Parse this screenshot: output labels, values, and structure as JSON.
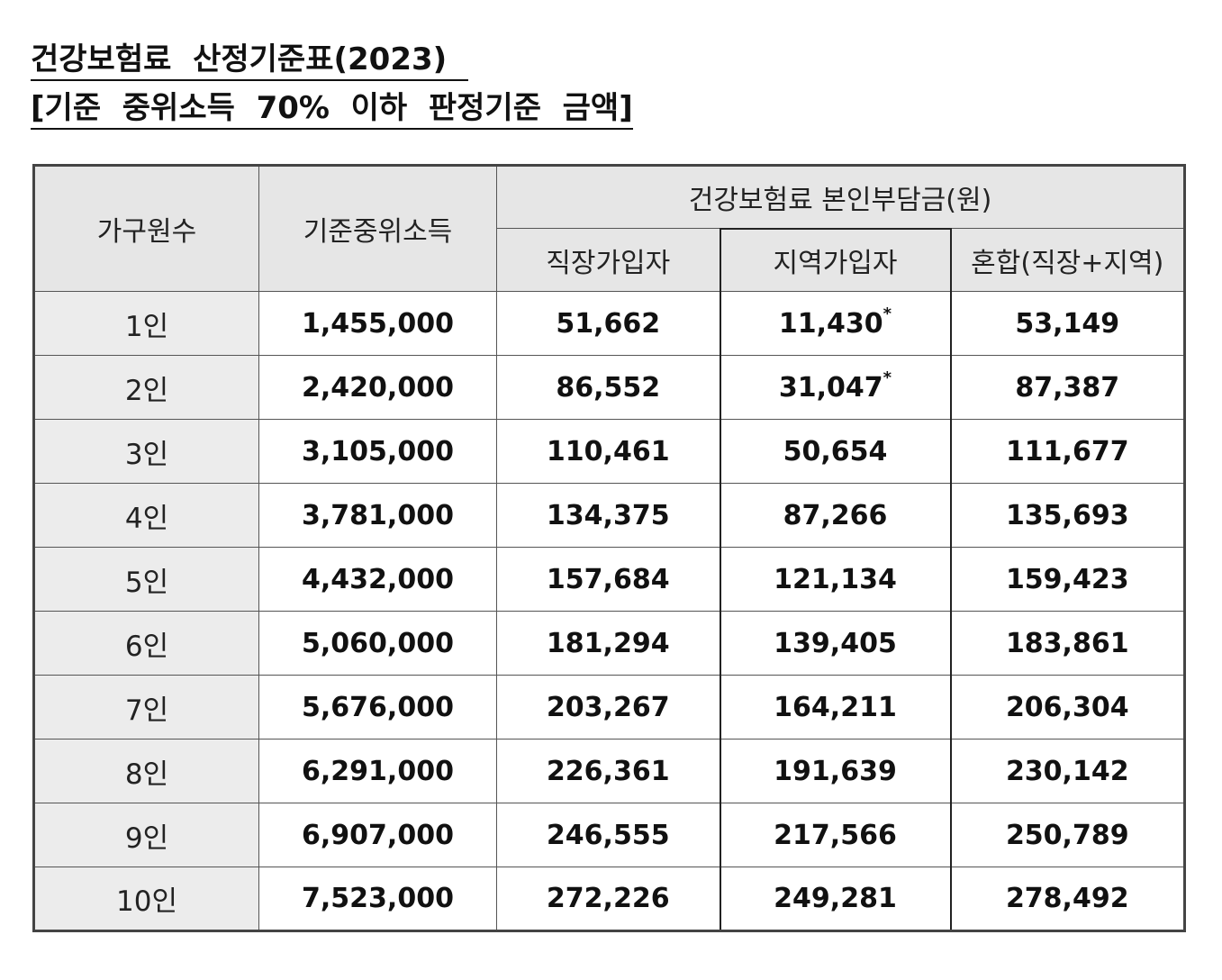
{
  "titles": {
    "line1": "건강보험료  산정기준표(2023)  ",
    "line2": "[기준  중위소득  70%  이하  판정기준  금액]"
  },
  "table": {
    "headers": {
      "household": "가구원수",
      "median_income": "기준중위소득",
      "premium_group": "건강보험료  본인부담금(원)",
      "employee": "직장가입자",
      "regional": "지역가입자",
      "mixed": "혼합(직장+지역)"
    },
    "rows": [
      {
        "household": "1인",
        "median_income": "1,455,000",
        "employee": "51,662",
        "regional": "11,430",
        "regional_mark": "*",
        "mixed": "53,149"
      },
      {
        "household": "2인",
        "median_income": "2,420,000",
        "employee": "86,552",
        "regional": "31,047",
        "regional_mark": "*",
        "mixed": "87,387"
      },
      {
        "household": "3인",
        "median_income": "3,105,000",
        "employee": "110,461",
        "regional": "50,654",
        "regional_mark": "",
        "mixed": "111,677"
      },
      {
        "household": "4인",
        "median_income": "3,781,000",
        "employee": "134,375",
        "regional": "87,266",
        "regional_mark": "",
        "mixed": "135,693"
      },
      {
        "household": "5인",
        "median_income": "4,432,000",
        "employee": "157,684",
        "regional": "121,134",
        "regional_mark": "",
        "mixed": "159,423"
      },
      {
        "household": "6인",
        "median_income": "5,060,000",
        "employee": "181,294",
        "regional": "139,405",
        "regional_mark": "",
        "mixed": "183,861"
      },
      {
        "household": "7인",
        "median_income": "5,676,000",
        "employee": "203,267",
        "regional": "164,211",
        "regional_mark": "",
        "mixed": "206,304"
      },
      {
        "household": "8인",
        "median_income": "6,291,000",
        "employee": "226,361",
        "regional": "191,639",
        "regional_mark": "",
        "mixed": "230,142"
      },
      {
        "household": "9인",
        "median_income": "6,907,000",
        "employee": "246,555",
        "regional": "217,566",
        "regional_mark": "",
        "mixed": "250,789"
      },
      {
        "household": "10인",
        "median_income": "7,523,000",
        "employee": "272,226",
        "regional": "249,281",
        "regional_mark": "",
        "mixed": "278,492"
      }
    ]
  }
}
